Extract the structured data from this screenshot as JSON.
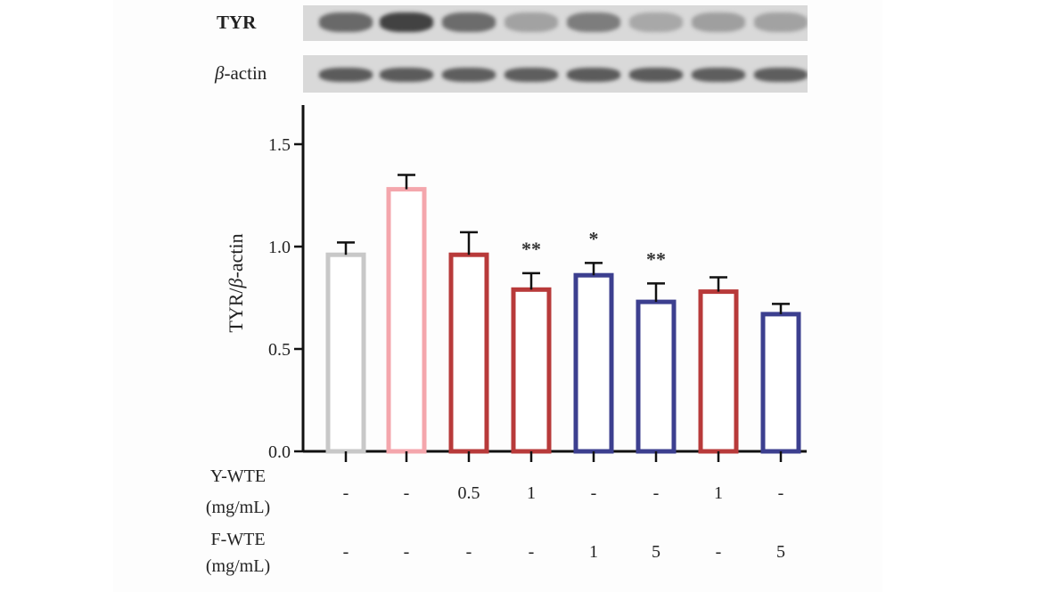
{
  "blots": {
    "tyr_label": "TYR",
    "actin_label_italic": "β",
    "actin_label_rest": "-actin",
    "tyr_intensity": [
      0.62,
      0.85,
      0.6,
      0.28,
      0.5,
      0.25,
      0.3,
      0.28
    ],
    "actin_intensity": [
      0.7,
      0.7,
      0.68,
      0.68,
      0.7,
      0.7,
      0.68,
      0.68
    ]
  },
  "chart_data": {
    "type": "bar",
    "ylabel": "TYR/β-actin",
    "ylabel_parts": [
      "TYR/",
      "β",
      "-actin"
    ],
    "ylim": [
      0.0,
      1.75
    ],
    "yticks": [
      0.0,
      0.5,
      1.0,
      1.5
    ],
    "ytick_labels": [
      "0.0",
      "0.5",
      "1.0",
      "1.5"
    ],
    "values": [
      0.96,
      1.28,
      0.96,
      0.79,
      0.86,
      0.73,
      0.78,
      0.67
    ],
    "errors": [
      0.06,
      0.07,
      0.11,
      0.08,
      0.06,
      0.09,
      0.07,
      0.05
    ],
    "significance": [
      "",
      "",
      "",
      "**",
      "*",
      "**",
      "",
      ""
    ],
    "bar_colors": [
      "#c8c8c8",
      "#f4a6ac",
      "#b83a3a",
      "#b83a3a",
      "#3c3f8f",
      "#3c3f8f",
      "#b83a3a",
      "#3c3f8f"
    ],
    "row_labels": [
      {
        "line1": "Y-WTE",
        "line2": "(mg/mL)",
        "values": [
          "-",
          "-",
          "0.5",
          "1",
          "-",
          "-",
          "1",
          "-"
        ]
      },
      {
        "line1": "F-WTE",
        "line2": "(mg/mL)",
        "values": [
          "-",
          "-",
          "-",
          "-",
          "1",
          "5",
          "-",
          "5"
        ]
      }
    ]
  }
}
